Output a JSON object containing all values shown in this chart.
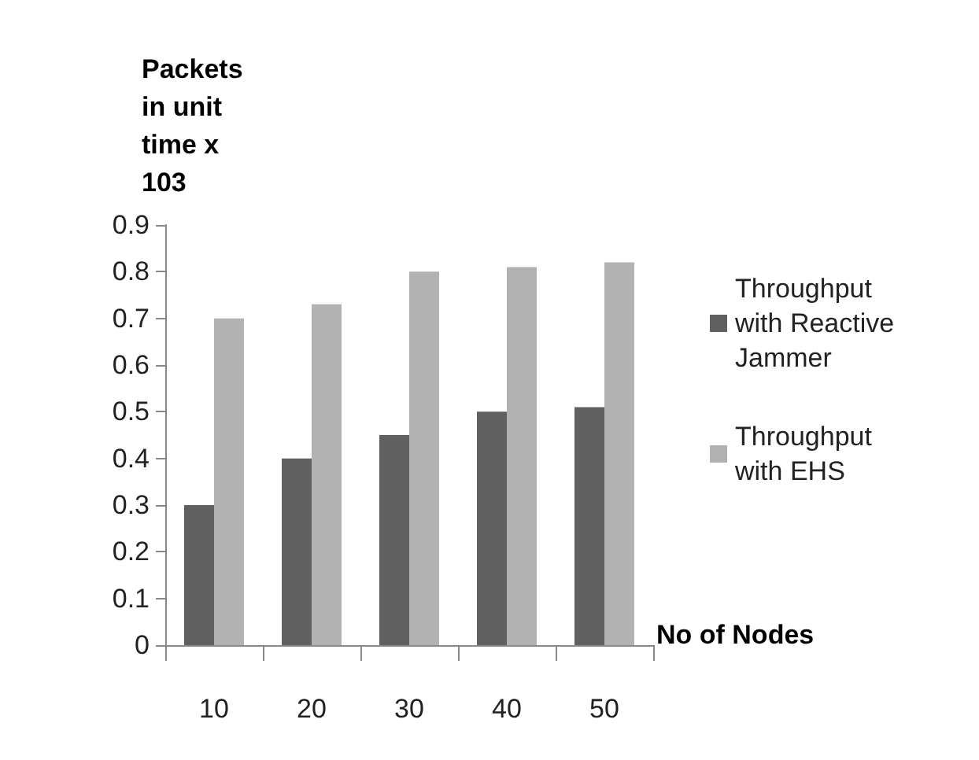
{
  "chart_data": {
    "type": "bar",
    "ylabel": "Packets in unit time x 103",
    "xlabel": "No of Nodes",
    "categories": [
      "10",
      "20",
      "30",
      "40",
      "50"
    ],
    "series": [
      {
        "name": "Throughput with Reactive Jammer",
        "color": "#606060",
        "values": [
          0.3,
          0.4,
          0.45,
          0.5,
          0.51
        ]
      },
      {
        "name": "Throughput with EHS",
        "color": "#b2b2b2",
        "values": [
          0.7,
          0.73,
          0.8,
          0.81,
          0.82
        ]
      }
    ],
    "ylim": [
      0,
      0.9
    ],
    "yticks": [
      0,
      0.1,
      0.2,
      0.3,
      0.4,
      0.5,
      0.6,
      0.7,
      0.8,
      0.9
    ],
    "grid": false,
    "legend": "right"
  }
}
